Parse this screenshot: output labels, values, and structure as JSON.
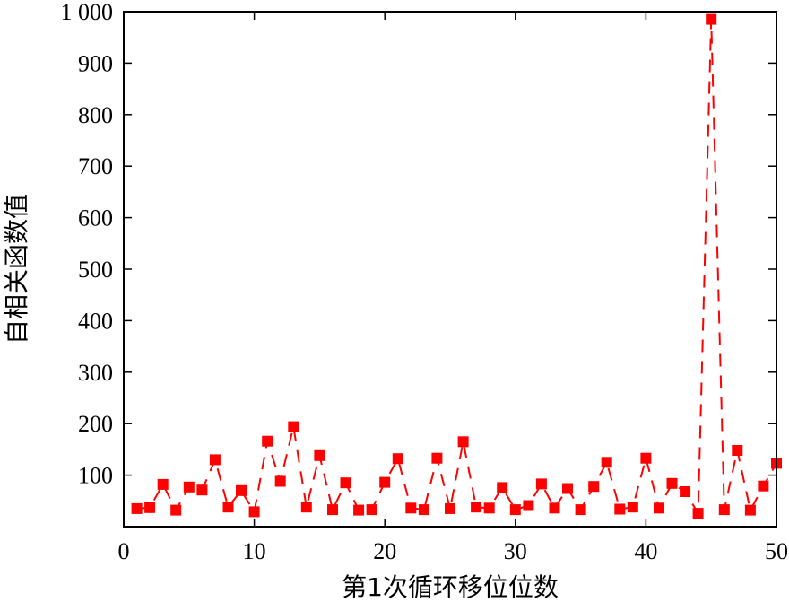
{
  "chart_data": {
    "type": "line",
    "xlabel": "第1次循环移位位数",
    "ylabel": "自相关函数值",
    "xlim": [
      0,
      50
    ],
    "ylim": [
      0,
      1000
    ],
    "x_ticks": [
      0,
      10,
      20,
      30,
      40,
      50
    ],
    "x_tick_labels": [
      "0",
      "10",
      "20",
      "30",
      "40",
      "50"
    ],
    "y_ticks": [
      100,
      200,
      300,
      400,
      500,
      600,
      700,
      800,
      900,
      1000
    ],
    "y_tick_labels": [
      "100",
      "200",
      "300",
      "400",
      "500",
      "600",
      "700",
      "800",
      "900",
      "1 000"
    ],
    "grid": false,
    "series": [
      {
        "color": "#ff0000",
        "line_style": "dashed",
        "marker": "square",
        "x": [
          1,
          2,
          3,
          4,
          5,
          6,
          7,
          8,
          9,
          10,
          11,
          12,
          13,
          14,
          15,
          16,
          17,
          18,
          19,
          20,
          21,
          22,
          23,
          24,
          25,
          26,
          27,
          28,
          29,
          30,
          31,
          32,
          33,
          34,
          35,
          36,
          37,
          38,
          39,
          40,
          41,
          42,
          43,
          44,
          45,
          46,
          47,
          48,
          49,
          50
        ],
        "values": [
          35,
          37,
          82,
          32,
          77,
          71,
          130,
          38,
          70,
          29,
          166,
          88,
          194,
          38,
          138,
          33,
          85,
          32,
          33,
          86,
          132,
          36,
          33,
          133,
          35,
          165,
          38,
          36,
          76,
          33,
          41,
          83,
          36,
          74,
          33,
          78,
          125,
          34,
          38,
          133,
          36,
          84,
          68,
          26,
          985,
          33,
          148,
          32,
          79,
          123
        ]
      }
    ]
  }
}
